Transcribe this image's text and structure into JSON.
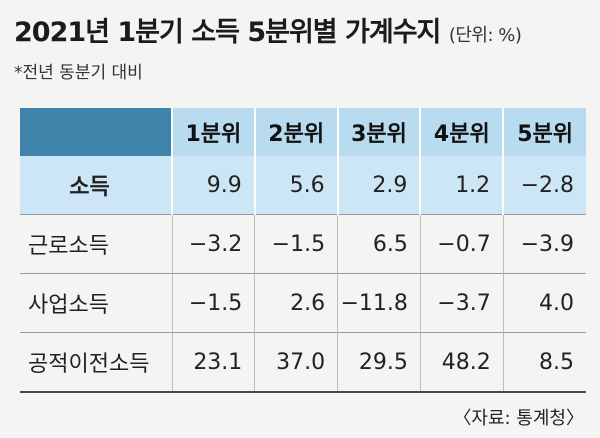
{
  "title": {
    "main": "2021년 1분기 소득 5분위별 가계수지",
    "unit": "(단위: %)"
  },
  "note": "*전년 동분기 대비",
  "table": {
    "columns": [
      "1분위",
      "2분위",
      "3분위",
      "4분위",
      "5분위"
    ],
    "rows": [
      {
        "label": "소득",
        "values": [
          "9.9",
          "5.6",
          "2.9",
          "1.2",
          "−2.8"
        ]
      },
      {
        "label": "근로소득",
        "values": [
          "−3.2",
          "−1.5",
          "6.5",
          "−0.7",
          "−3.9"
        ]
      },
      {
        "label": "사업소득",
        "values": [
          "−1.5",
          "2.6",
          "−11.8",
          "−3.7",
          "4.0"
        ]
      },
      {
        "label": "공적이전소득",
        "values": [
          "23.1",
          "37.0",
          "29.5",
          "48.2",
          "8.5"
        ]
      }
    ]
  },
  "source": "〈자료: 통계청〉",
  "colors": {
    "corner": "#3f83aa",
    "header": "#b9dbef",
    "highlight_row": "#cde6f5",
    "background": "#f4f4f2"
  }
}
